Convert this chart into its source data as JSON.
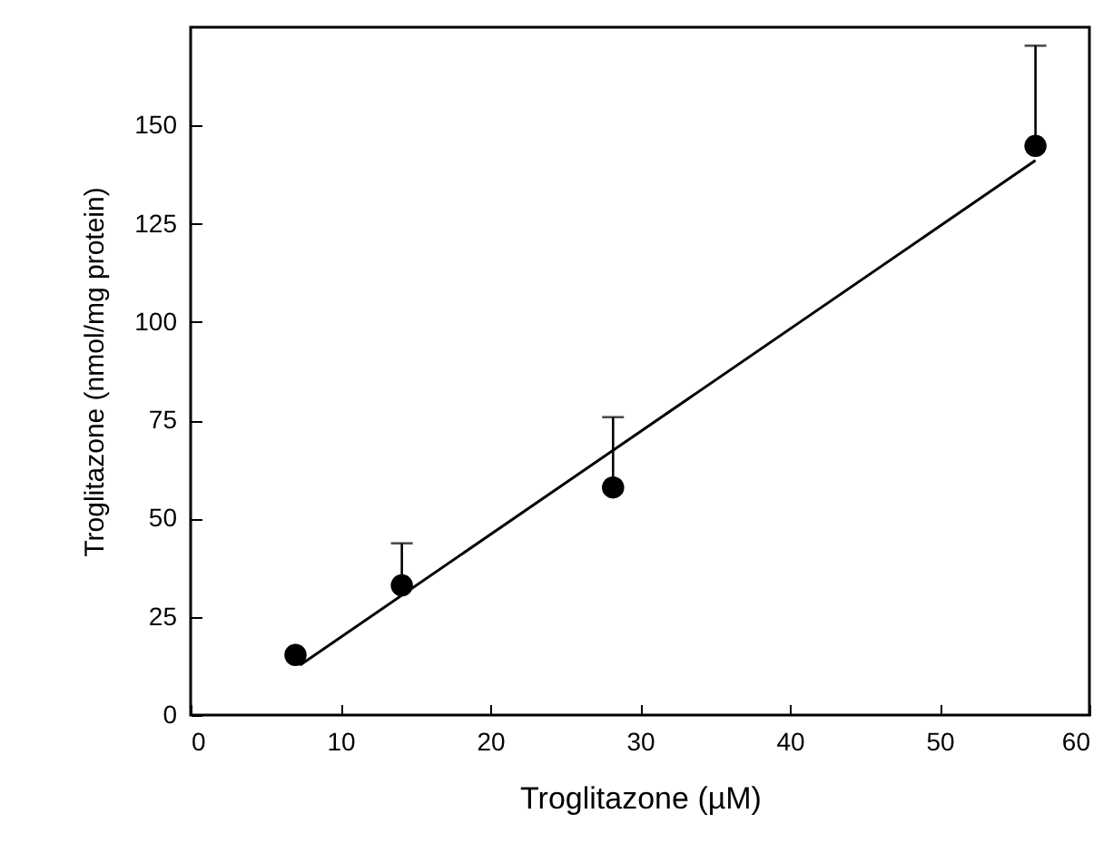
{
  "chart_data": {
    "type": "scatter",
    "xlabel": "Troglitazone (µM)",
    "ylabel": "Troglitazone (nmol/mg protein)",
    "xlim": [
      0,
      60
    ],
    "xticks": [
      0,
      10,
      20,
      30,
      40,
      50,
      60
    ],
    "ylim": [
      0,
      175
    ],
    "yticks": [
      0,
      25,
      50,
      75,
      100,
      125,
      150
    ],
    "series": [
      {
        "color": "#000000",
        "marker": "circle",
        "x": [
          7,
          14.1,
          28.2,
          56.4
        ],
        "values": [
          15.3,
          33,
          57.9,
          144.8
        ],
        "errors": [
          null,
          [
            33,
            43.7
          ],
          [
            57.9,
            75.8
          ],
          [
            144.8,
            170.3
          ]
        ]
      },
      {
        "type": "line",
        "color": "#000000",
        "x": [
          7.3,
          56.4
        ],
        "values": [
          12.7,
          141.1
        ]
      }
    ]
  }
}
